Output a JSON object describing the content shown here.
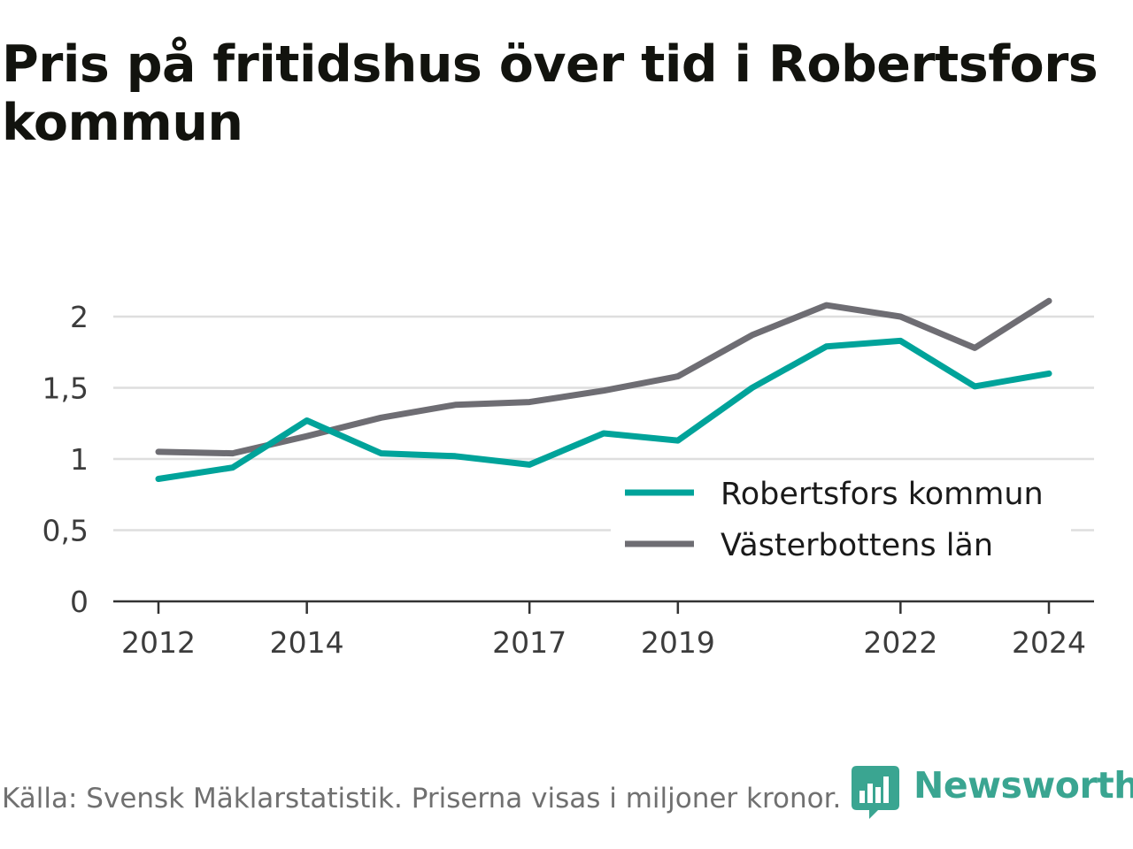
{
  "chart_data": {
    "type": "line",
    "title": "Pris på fritidshus över tid i Robertsfors kommun",
    "x": [
      2012,
      2013,
      2014,
      2015,
      2016,
      2017,
      2018,
      2019,
      2020,
      2021,
      2022,
      2023,
      2024
    ],
    "x_tick_labels": [
      "2012",
      "2014",
      "2017",
      "2019",
      "2022",
      "2024"
    ],
    "y_tick_labels": [
      "0",
      "0,5",
      "1",
      "1,5",
      "2"
    ],
    "ylim": [
      0,
      2.2
    ],
    "grid": true,
    "legend_position": "bottom-right",
    "series": [
      {
        "name": "Robertsfors kommun",
        "color": "#00a39a",
        "values": [
          0.86,
          0.94,
          1.27,
          1.04,
          1.02,
          0.96,
          1.18,
          1.13,
          1.5,
          1.79,
          1.83,
          1.51,
          1.6
        ]
      },
      {
        "name": "Västerbottens län",
        "color": "#6e6d73",
        "values": [
          1.05,
          1.04,
          1.16,
          1.29,
          1.38,
          1.4,
          1.48,
          1.58,
          1.87,
          2.08,
          2.0,
          1.78,
          2.11
        ]
      }
    ]
  },
  "source_note": "Källa: Svensk Mäklarstatistik. Priserna visas i miljoner kronor.",
  "brand": {
    "name": "Newsworthy",
    "color": "#3aa591",
    "icon": "bar-chart-speech-bubble-icon"
  }
}
